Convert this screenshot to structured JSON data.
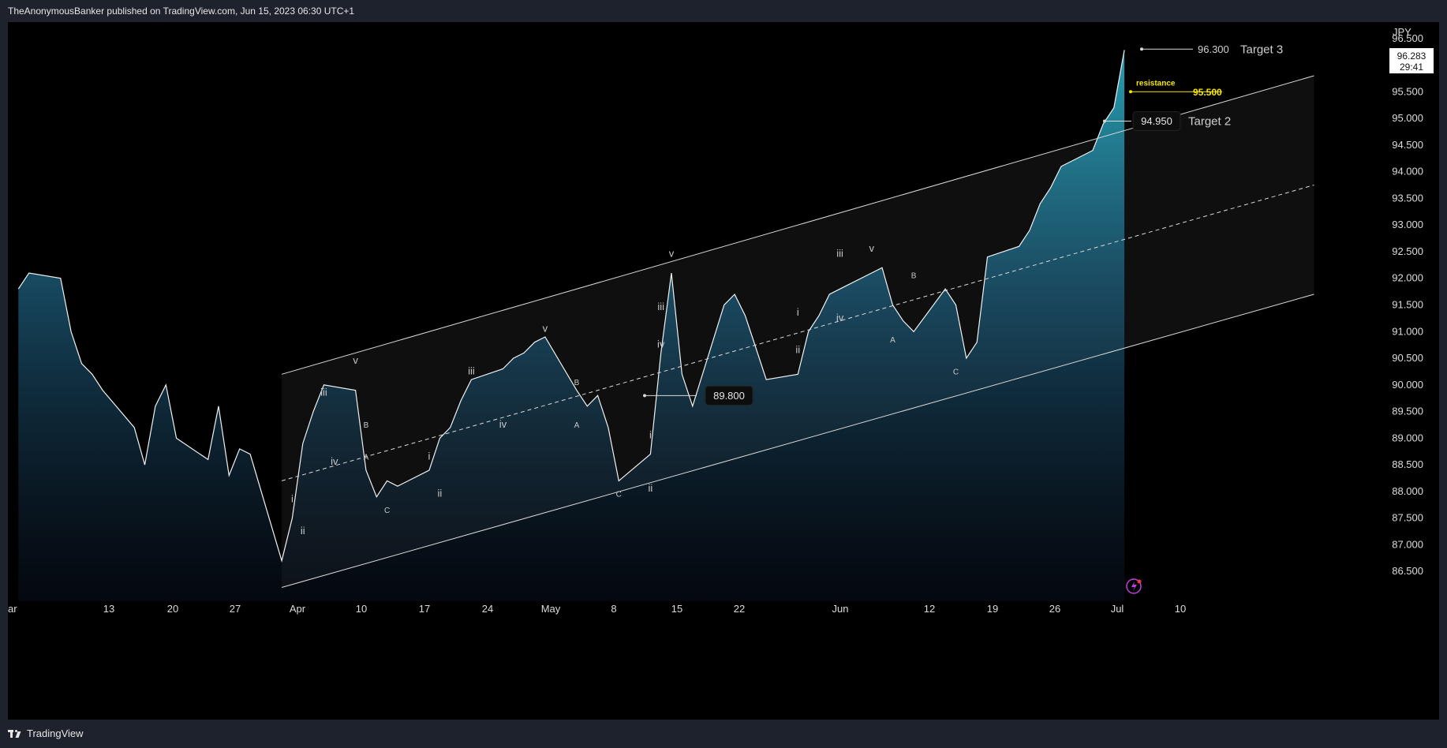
{
  "header": {
    "publish_text": "TheAnonymousBanker published on TradingView.com, Jun 15, 2023 06:30 UTC+1"
  },
  "footer": {
    "brand": "TradingView"
  },
  "chart_data": {
    "type": "area",
    "currency": "JPY",
    "ylim": [
      86.0,
      96.6
    ],
    "y_ticks": [
      "96.500",
      "96.000",
      "95.500",
      "95.000",
      "94.500",
      "94.000",
      "93.500",
      "93.000",
      "92.500",
      "92.000",
      "91.500",
      "91.000",
      "90.500",
      "90.000",
      "89.500",
      "89.000",
      "88.500",
      "88.000",
      "87.500",
      "87.000",
      "86.500"
    ],
    "x_labels": [
      "ar",
      "13",
      "20",
      "27",
      "Apr",
      "10",
      "17",
      "24",
      "May",
      "8",
      "15",
      "22",
      "Jun",
      "12",
      "19",
      "26",
      "Jul",
      "10"
    ],
    "last_price": "96.283",
    "countdown": "29:41",
    "series": [
      {
        "x": [
          "Mar 2",
          "Mar 3",
          "Mar 6",
          "Mar 7",
          "Mar 8",
          "Mar 9",
          "Mar 10",
          "Mar 13",
          "Mar 14",
          "Mar 15",
          "Mar 16",
          "Mar 17",
          "Mar 20",
          "Mar 21",
          "Mar 22",
          "Mar 23",
          "Mar 24",
          "Mar 27",
          "Mar 28",
          "Mar 29",
          "Mar 30",
          "Mar 31",
          "Apr 3",
          "Apr 4",
          "Apr 5",
          "Apr 6",
          "Apr 7",
          "Apr 10",
          "Apr 11",
          "Apr 12",
          "Apr 13",
          "Apr 14",
          "Apr 17",
          "Apr 18",
          "Apr 19",
          "Apr 20",
          "Apr 21",
          "Apr 24",
          "Apr 25",
          "Apr 26",
          "Apr 27",
          "Apr 28",
          "May 1",
          "May 2",
          "May 3",
          "May 4",
          "May 5",
          "May 8",
          "May 9",
          "May 10",
          "May 11",
          "May 12",
          "May 15",
          "May 16",
          "May 17",
          "May 18",
          "May 19",
          "May 22",
          "May 23",
          "May 24",
          "May 25",
          "May 26",
          "May 29",
          "May 30",
          "May 31",
          "Jun 1",
          "Jun 2",
          "Jun 5",
          "Jun 6",
          "Jun 7",
          "Jun 8",
          "Jun 9",
          "Jun 12",
          "Jun 13",
          "Jun 14",
          "Jun 15"
        ],
        "values": [
          91.8,
          92.1,
          92.0,
          91.0,
          90.4,
          90.2,
          89.9,
          89.2,
          88.5,
          89.6,
          90.0,
          89.0,
          88.6,
          89.6,
          88.3,
          88.8,
          88.7,
          86.7,
          87.5,
          88.9,
          89.5,
          90.0,
          89.9,
          88.4,
          87.9,
          88.2,
          88.1,
          88.4,
          89.0,
          89.2,
          89.7,
          90.1,
          90.3,
          90.5,
          90.6,
          90.8,
          90.9,
          89.9,
          89.6,
          89.8,
          89.2,
          88.2,
          88.7,
          90.6,
          92.1,
          90.2,
          89.6,
          91.5,
          91.7,
          91.3,
          90.7,
          90.1,
          90.2,
          91.0,
          91.3,
          91.7,
          91.8,
          92.1,
          92.2,
          91.5,
          91.2,
          91.0,
          91.8,
          91.5,
          90.5,
          90.8,
          92.4,
          92.6,
          92.9,
          93.4,
          93.7,
          94.1,
          94.4,
          94.9,
          95.2,
          96.283
        ]
      }
    ],
    "channel": {
      "lower_start": 86.2,
      "upper_start": 90.2,
      "lower_end": 91.7,
      "upper_end": 95.8,
      "start": "Mar 27",
      "end": "Jul 3"
    },
    "levels": [
      {
        "label": "Target 3",
        "value": "96.300"
      },
      {
        "label": "resistance",
        "value": "95.500",
        "color": "#f7e600"
      },
      {
        "label": "Target 2",
        "value": "94.950"
      },
      {
        "label": "",
        "value": "89.800"
      }
    ],
    "wave_labels": [
      {
        "text": "i",
        "x": "Mar 28",
        "y": 87.8
      },
      {
        "text": "ii",
        "x": "Mar 29",
        "y": 87.2
      },
      {
        "text": "iii",
        "x": "Mar 31",
        "y": 89.8
      },
      {
        "text": "iv",
        "x": "Apr 1",
        "y": 88.5
      },
      {
        "text": "v",
        "x": "Apr 3",
        "y": 90.4
      },
      {
        "text": "B",
        "x": "Apr 4",
        "y": 89.2
      },
      {
        "text": "A",
        "x": "Apr 4",
        "y": 88.6
      },
      {
        "text": "C",
        "x": "Apr 6",
        "y": 87.6
      },
      {
        "text": "i",
        "x": "Apr 10",
        "y": 88.6
      },
      {
        "text": "ii",
        "x": "Apr 11",
        "y": 87.9
      },
      {
        "text": "iii",
        "x": "Apr 14",
        "y": 90.2
      },
      {
        "text": "iv",
        "x": "Apr 17",
        "y": 89.2
      },
      {
        "text": "v",
        "x": "Apr 21",
        "y": 91.0
      },
      {
        "text": "B",
        "x": "Apr 24",
        "y": 90.0
      },
      {
        "text": "A",
        "x": "Apr 24",
        "y": 89.2
      },
      {
        "text": "C",
        "x": "Apr 28",
        "y": 87.9
      },
      {
        "text": "i",
        "x": "May 1",
        "y": 89.0
      },
      {
        "text": "ii",
        "x": "May 1",
        "y": 88.0
      },
      {
        "text": "iii",
        "x": "May 2",
        "y": 91.4
      },
      {
        "text": "iv",
        "x": "May 2",
        "y": 90.7
      },
      {
        "text": "v",
        "x": "May 3",
        "y": 92.4
      },
      {
        "text": "i",
        "x": "May 15",
        "y": 91.3
      },
      {
        "text": "ii",
        "x": "May 15",
        "y": 90.6
      },
      {
        "text": "iii",
        "x": "May 19",
        "y": 92.4
      },
      {
        "text": "iv",
        "x": "May 19",
        "y": 91.2
      },
      {
        "text": "v",
        "x": "May 22",
        "y": 92.5
      },
      {
        "text": "A",
        "x": "May 24",
        "y": 90.8
      },
      {
        "text": "B",
        "x": "May 26",
        "y": 92.0
      },
      {
        "text": "C",
        "x": "May 30",
        "y": 90.2
      }
    ]
  }
}
